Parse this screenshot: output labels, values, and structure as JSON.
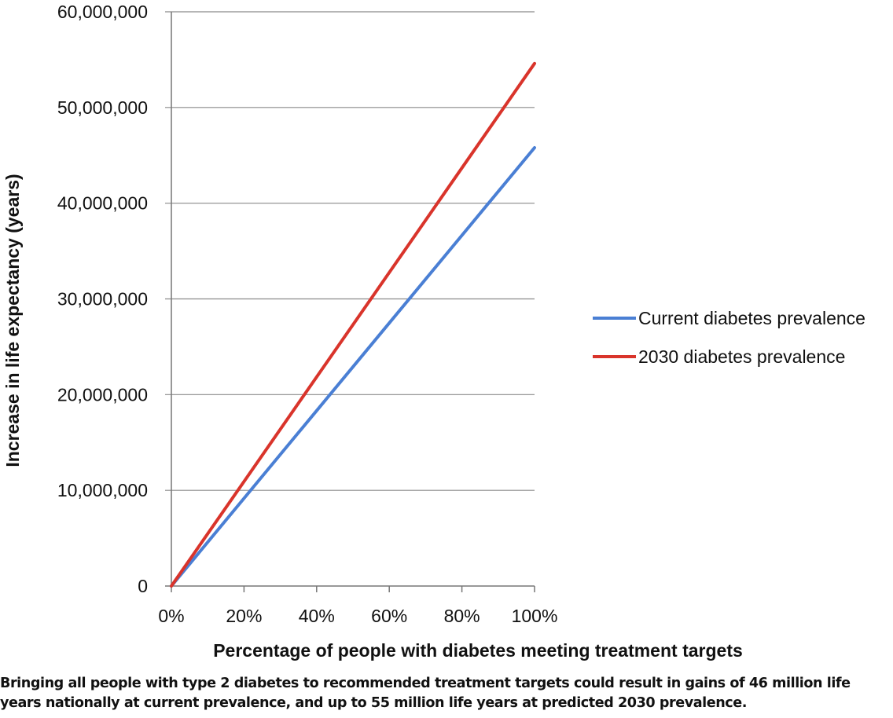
{
  "chart_data": {
    "type": "line",
    "title": "",
    "xlabel": "Percentage of people with diabetes meeting treatment targets",
    "ylabel": "Increase in life expectancy (years)",
    "x": [
      0,
      20,
      40,
      60,
      80,
      100
    ],
    "x_tick_labels": [
      "0%",
      "20%",
      "40%",
      "60%",
      "80%",
      "100%"
    ],
    "xlim": [
      0,
      100
    ],
    "ylim": [
      0,
      60000000
    ],
    "y_ticks": [
      0,
      10000000,
      20000000,
      30000000,
      40000000,
      50000000,
      60000000
    ],
    "y_tick_labels": [
      "0",
      "10,000,000",
      "20,000,000",
      "30,000,000",
      "40,000,000",
      "50,000,000",
      "60,000,000"
    ],
    "grid": "horizontal",
    "legend_position": "right",
    "series": [
      {
        "name": "Current diabetes prevalence",
        "color": "#4a7fd4",
        "values": [
          0,
          9160000,
          18320000,
          27480000,
          36640000,
          45800000
        ]
      },
      {
        "name": "2030 diabetes prevalence",
        "color": "#d9342b",
        "values": [
          0,
          10920000,
          21840000,
          32760000,
          43680000,
          54600000
        ]
      }
    ]
  },
  "caption": "Bringing all people with type 2 diabetes to recommended treatment targets could result in gains of 46 million life years nationally at current prevalence, and up to 55 million life years at predicted 2030 prevalence.",
  "colors": {
    "grid": "#8a8a8a",
    "axis": "#777777"
  }
}
